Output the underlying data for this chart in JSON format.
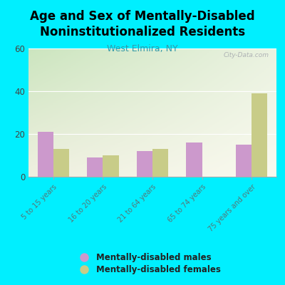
{
  "title": "Age and Sex of Mentally-Disabled\nNoninstitutionalized Residents",
  "subtitle": "West Elmira, NY",
  "categories": [
    "5 to 15 years",
    "16 to 20 years",
    "21 to 64 years",
    "65 to 74 years",
    "75 years and over"
  ],
  "males": [
    21,
    9,
    12,
    16,
    15
  ],
  "females": [
    13,
    10,
    13,
    0,
    39
  ],
  "male_color": "#cc99cc",
  "female_color": "#c8cc88",
  "ylim": [
    0,
    60
  ],
  "yticks": [
    0,
    20,
    40,
    60
  ],
  "background_color": "#00efff",
  "watermark": "City-Data.com",
  "legend_male": "Mentally-disabled males",
  "legend_female": "Mentally-disabled females",
  "bar_width": 0.32,
  "title_fontsize": 12,
  "subtitle_fontsize": 9,
  "subtitle_color": "#3399aa"
}
